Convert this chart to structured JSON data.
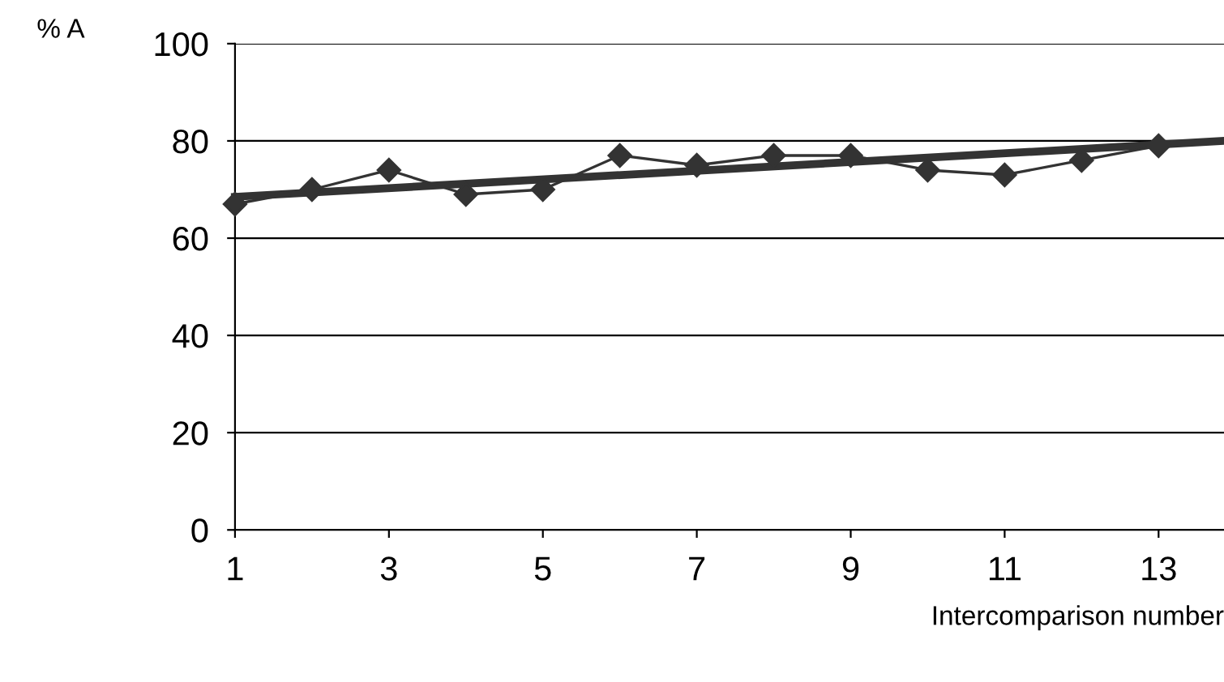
{
  "chart_data": {
    "type": "line",
    "ylabel": "% A",
    "xlabel": "Intercomparison number",
    "x": [
      1,
      2,
      3,
      4,
      5,
      6,
      7,
      8,
      9,
      10,
      11,
      12,
      13
    ],
    "series": [
      {
        "color": "#333333",
        "marker": "diamond",
        "values": [
          67,
          70,
          74,
          69,
          70,
          77,
          75,
          77,
          77,
          74,
          73,
          76,
          79
        ]
      },
      {
        "color": "#333333",
        "marker": "none",
        "x": [
          1,
          13.85
        ],
        "values": [
          68.5,
          80
        ]
      }
    ],
    "xlim": [
      1,
      13.85
    ],
    "xticks": [
      1,
      3,
      5,
      7,
      9,
      11,
      13
    ],
    "ylim": [
      0,
      100
    ],
    "yticks": [
      0,
      20,
      40,
      60,
      80,
      100
    ],
    "grid": "y",
    "legend": false
  }
}
